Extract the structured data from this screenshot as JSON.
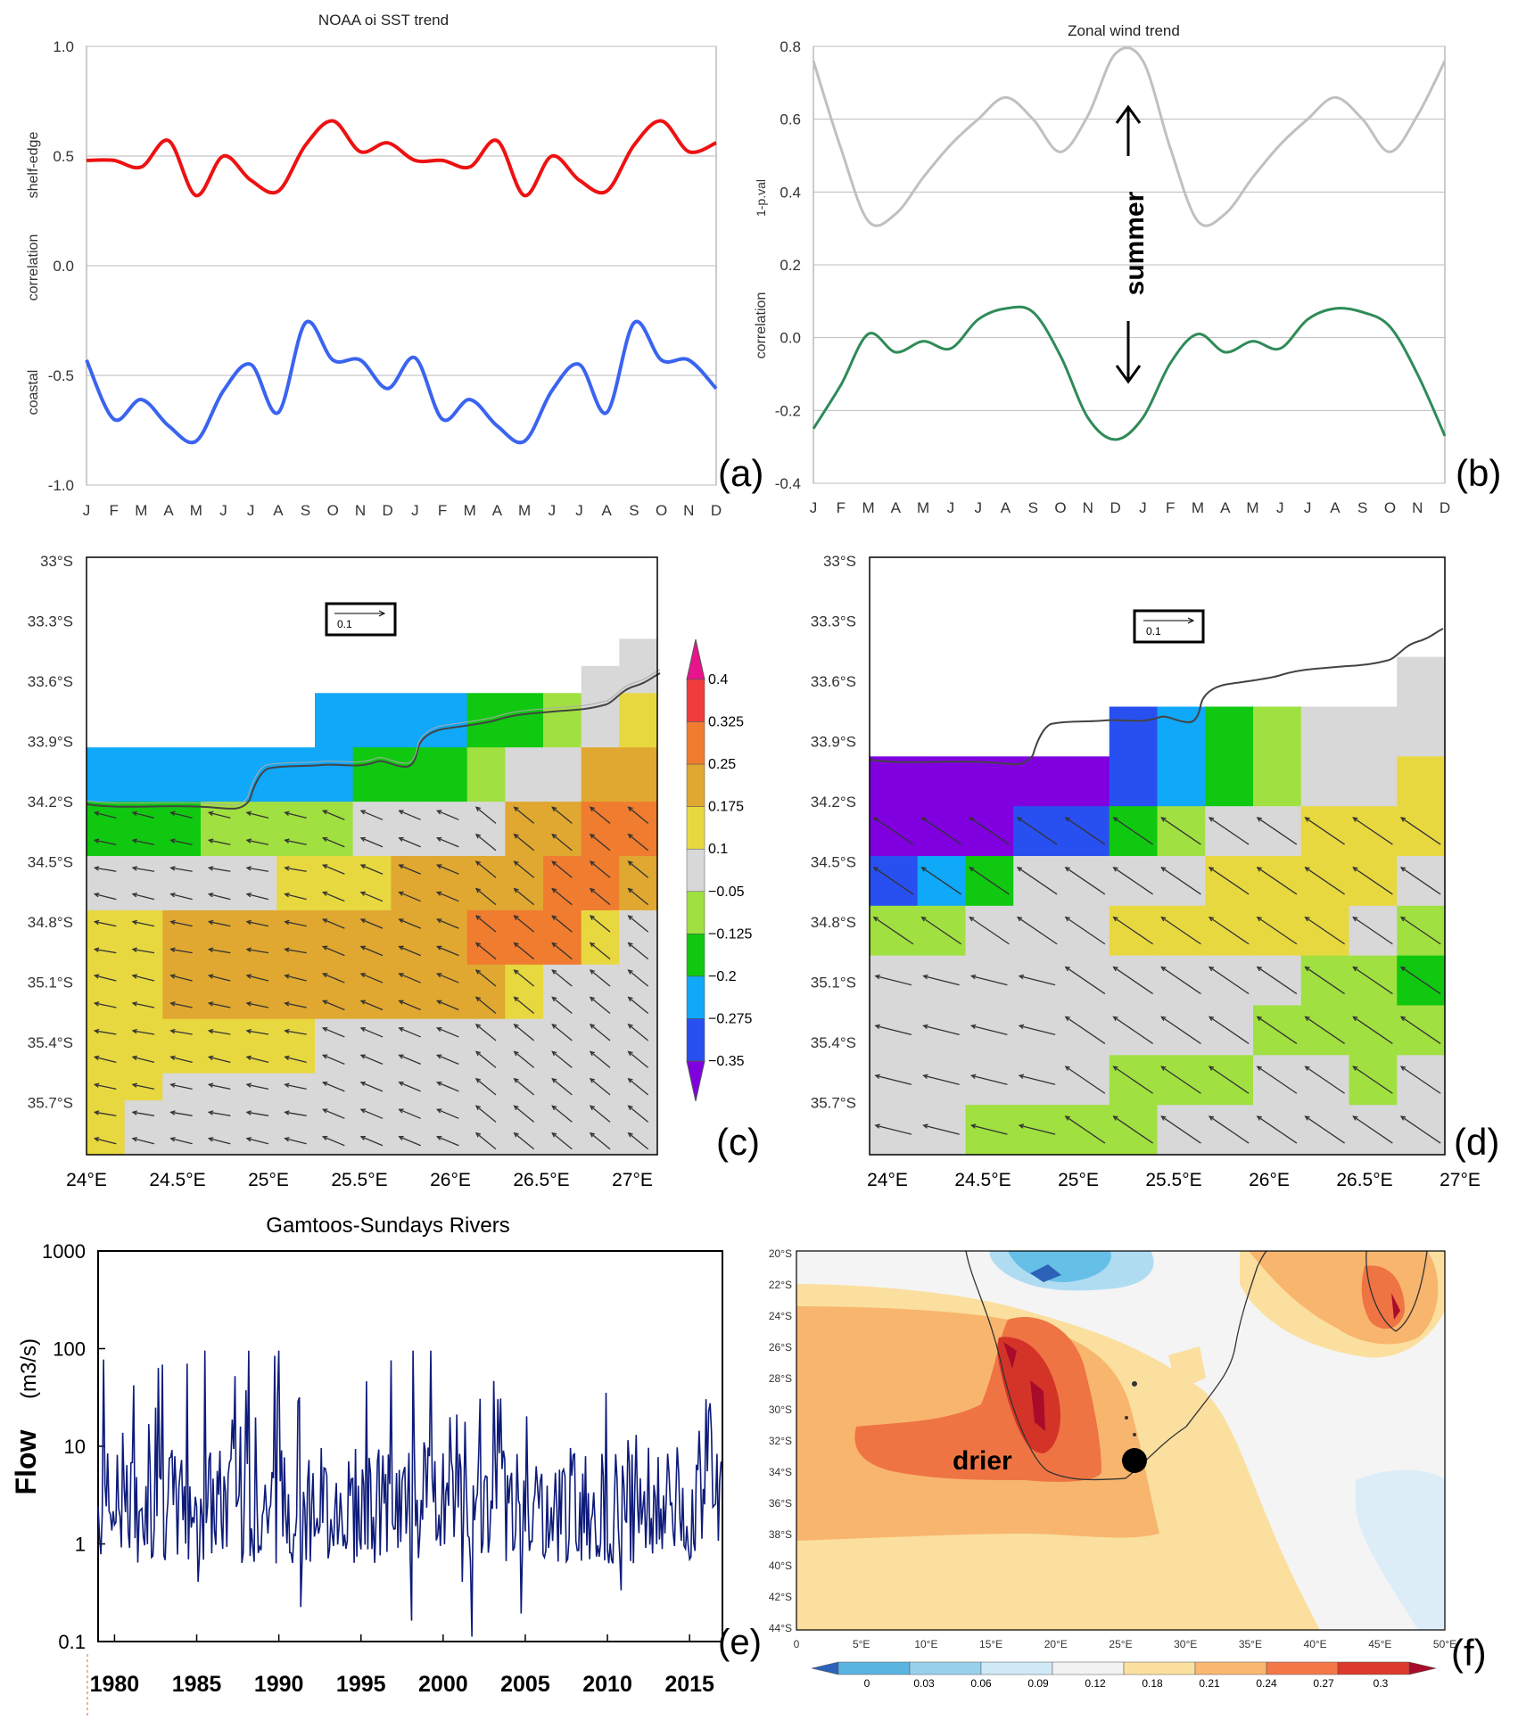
{
  "chart_data": [
    {
      "panel": "(a)",
      "type": "line",
      "title": "NOAA oi SST trend",
      "ylabel_parts": [
        "shelf-edge",
        "correlation",
        "coastal"
      ],
      "ylim": [
        -1.0,
        1.0
      ],
      "yticks": [
        1.0,
        0.5,
        0.0,
        -0.5,
        -1.0
      ],
      "ytick_labels": [
        "1.0",
        "0.5",
        "0.0",
        "-0.5",
        "-1.0"
      ],
      "categories": [
        "J",
        "F",
        "M",
        "A",
        "M",
        "J",
        "J",
        "A",
        "S",
        "O",
        "N",
        "D",
        "J",
        "F",
        "M",
        "A",
        "M",
        "J",
        "J",
        "A",
        "S",
        "O",
        "N",
        "D"
      ],
      "series": [
        {
          "name": "shelf-edge",
          "color": "#ee1111",
          "values": [
            0.48,
            0.48,
            0.45,
            0.57,
            0.32,
            0.5,
            0.39,
            0.34,
            0.55,
            0.66,
            0.52,
            0.56,
            0.48,
            0.48,
            0.45,
            0.57,
            0.32,
            0.5,
            0.39,
            0.34,
            0.55,
            0.66,
            0.52,
            0.56
          ]
        },
        {
          "name": "coastal",
          "color": "#3a64f0",
          "values": [
            -0.43,
            -0.7,
            -0.61,
            -0.73,
            -0.8,
            -0.57,
            -0.45,
            -0.67,
            -0.26,
            -0.43,
            -0.43,
            -0.56,
            -0.42,
            -0.7,
            -0.61,
            -0.73,
            -0.8,
            -0.57,
            -0.45,
            -0.67,
            -0.26,
            -0.43,
            -0.43,
            -0.56
          ]
        }
      ]
    },
    {
      "panel": "(b)",
      "type": "line",
      "title": "Zonal wind trend",
      "ylabel_top": "1-p.val",
      "ylabel_bottom": "correlation",
      "annotation": "summer",
      "ylim": [
        -0.4,
        0.8
      ],
      "yticks": [
        0.8,
        0.6,
        0.4,
        0.2,
        0.0,
        -0.2,
        -0.4
      ],
      "ytick_labels": [
        "0.8",
        "0.6",
        "0.4",
        "0.2",
        "0.0",
        "-0.2",
        "-0.4"
      ],
      "categories": [
        "J",
        "F",
        "M",
        "A",
        "M",
        "J",
        "J",
        "A",
        "S",
        "O",
        "N",
        "D",
        "J",
        "F",
        "M",
        "A",
        "M",
        "J",
        "J",
        "A",
        "S",
        "O",
        "N",
        "D"
      ],
      "series": [
        {
          "name": "1-p.val",
          "color": "#c0c0c0",
          "values": [
            0.76,
            0.52,
            0.32,
            0.34,
            0.44,
            0.53,
            0.6,
            0.66,
            0.6,
            0.51,
            0.61,
            0.78,
            0.76,
            0.52,
            0.32,
            0.34,
            0.44,
            0.53,
            0.6,
            0.66,
            0.6,
            0.51,
            0.61,
            0.76
          ]
        },
        {
          "name": "correlation",
          "color": "#2e8b57",
          "values": [
            -0.25,
            -0.13,
            0.01,
            -0.04,
            -0.01,
            -0.03,
            0.05,
            0.08,
            0.07,
            -0.05,
            -0.22,
            -0.28,
            -0.22,
            -0.07,
            0.01,
            -0.04,
            -0.01,
            -0.03,
            0.05,
            0.08,
            0.07,
            0.03,
            -0.1,
            -0.27
          ]
        }
      ]
    },
    {
      "panel": "(c)",
      "type": "heatmap",
      "lon_ticks": [
        "24°E",
        "24.5°E",
        "25°E",
        "25.5°E",
        "26°E",
        "26.5°E",
        "27°E"
      ],
      "lat_ticks": [
        "33°S",
        "33.3°S",
        "33.6°S",
        "33.9°S",
        "34.2°S",
        "34.5°S",
        "34.8°S",
        "35.1°S",
        "35.4°S",
        "35.7°S"
      ],
      "vector_scale_label": "0.1",
      "colorbar_labels": [
        "0.4",
        "0.325",
        "0.25",
        "0.175",
        "0.1",
        "−0.05",
        "−0.125",
        "−0.2",
        "−0.275",
        "−0.35"
      ],
      "colorbar_colors": [
        "#e8148c",
        "#f03c3c",
        "#f07c30",
        "#e0a830",
        "#e8d840",
        "#d8d8d8",
        "#a0e040",
        "#10c810",
        "#10a8f8",
        "#2850f0",
        "#8000e0"
      ],
      "legend": "right"
    },
    {
      "panel": "(d)",
      "type": "heatmap",
      "lon_ticks": [
        "24°E",
        "24.5°E",
        "25°E",
        "25.5°E",
        "26°E",
        "26.5°E",
        "27°E"
      ],
      "lat_ticks": [
        "33°S",
        "33.3°S",
        "33.6°S",
        "33.9°S",
        "34.2°S",
        "34.5°S",
        "34.8°S",
        "35.1°S",
        "35.4°S",
        "35.7°S"
      ],
      "vector_scale_label": "0.1"
    },
    {
      "panel": "(e)",
      "type": "line",
      "title": "Gamtoos-Sundays Rivers",
      "ylabel": "Flow",
      "ylabel_units": "(m3/s)",
      "yscale": "log",
      "ylim": [
        0.1,
        1000
      ],
      "ytick_labels": [
        "1000",
        "100",
        "10",
        "1",
        "0.1"
      ],
      "xlim": [
        1979,
        2017
      ],
      "xticks": [
        "1980",
        "1985",
        "1990",
        "1995",
        "2000",
        "2005",
        "2010",
        "2015"
      ],
      "series": [
        {
          "name": "flow",
          "color": "#0d1b7a",
          "values_note": "monthly flow 1979-2017"
        }
      ]
    },
    {
      "panel": "(f)",
      "type": "heatmap",
      "annotation": "drier",
      "lat_ticks": [
        "20°S",
        "22°S",
        "24°S",
        "26°S",
        "28°S",
        "30°S",
        "32°S",
        "34°S",
        "36°S",
        "38°S",
        "40°S",
        "42°S",
        "44°S"
      ],
      "lon_ticks": [
        "0",
        "5°E",
        "10°E",
        "15°E",
        "20°E",
        "25°E",
        "30°E",
        "35°E",
        "40°E",
        "45°E",
        "50°E"
      ],
      "colorbar_labels": [
        "0",
        "0.03",
        "0.06",
        "0.09",
        "0.12",
        "0.18",
        "0.21",
        "0.24",
        "0.27",
        "0.3"
      ],
      "colorbar_colors": [
        "#2c62b8",
        "#5ab4e0",
        "#98d0ec",
        "#cfe9f6",
        "#f2f2f2",
        "#fbe0a0",
        "#fbb870",
        "#f47848",
        "#dc3a2a",
        "#a80c2a"
      ]
    }
  ],
  "panel_labels": {
    "a": "(a)",
    "b": "(b)",
    "c": "(c)",
    "d": "(d)",
    "e": "(e)",
    "f": "(f)"
  }
}
